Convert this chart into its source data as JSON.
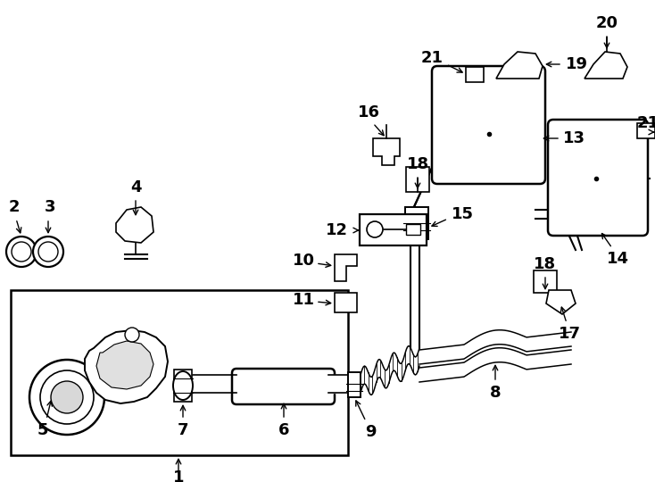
{
  "bg_color": "#ffffff",
  "line_color": "#000000",
  "fig_width": 7.34,
  "fig_height": 5.4,
  "dpi": 100,
  "title_text": "",
  "lw": 1.2
}
